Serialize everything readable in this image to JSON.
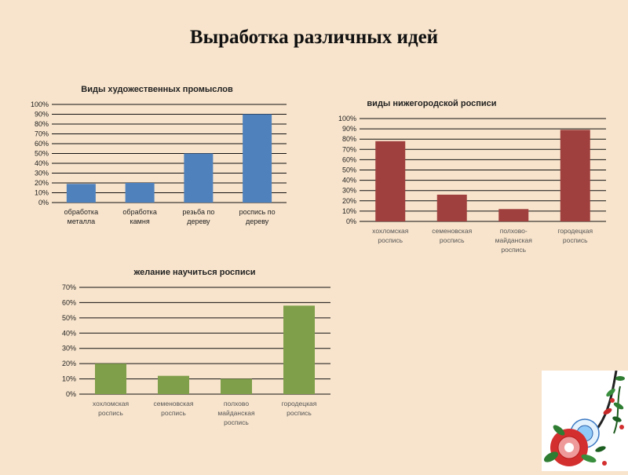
{
  "slide": {
    "title": "Выработка различных идей"
  },
  "colors": {
    "background": "#f8e4cc",
    "blue": "#4f81bd",
    "red": "#a0403e",
    "green": "#7f9f4a"
  },
  "ornament": {
    "icon": "khokhloma-flower-ornament-icon"
  },
  "chart_data": [
    {
      "type": "bar",
      "title": "Виды художественных промыслов",
      "categories": [
        [
          "обработка",
          "металла"
        ],
        [
          "обработка",
          "камня"
        ],
        [
          "резьба по",
          "дереву"
        ],
        [
          "роспись по",
          "дереву"
        ]
      ],
      "values": [
        0.19,
        0.2,
        0.5,
        0.9
      ],
      "yticks": [
        "0%",
        "10%",
        "20%",
        "30%",
        "40%",
        "50%",
        "60%",
        "70%",
        "80%",
        "90%",
        "100%"
      ],
      "ylim": [
        0,
        1.0
      ],
      "color": "#4f81bd",
      "grid": true
    },
    {
      "type": "bar",
      "title": "виды нижегородской росписи",
      "categories": [
        [
          "хохломская",
          "роспись"
        ],
        [
          "семеновская",
          "роспись"
        ],
        [
          "полхово-",
          "майданская",
          "роспись"
        ],
        [
          "городецкая",
          "роспись"
        ]
      ],
      "values": [
        0.78,
        0.26,
        0.12,
        0.89
      ],
      "yticks": [
        "0%",
        "10%",
        "20%",
        "30%",
        "40%",
        "50%",
        "60%",
        "70%",
        "80%",
        "90%",
        "100%"
      ],
      "ylim": [
        0,
        1.0
      ],
      "color": "#a0403e",
      "grid": true
    },
    {
      "type": "bar",
      "title": "желание научиться росписи",
      "categories": [
        [
          "хохломская",
          "роспись"
        ],
        [
          "семеновская",
          "роспись"
        ],
        [
          "полхово",
          "майданская",
          "роспись"
        ],
        [
          "городецкая",
          "роспись"
        ]
      ],
      "values": [
        0.2,
        0.12,
        0.1,
        0.58
      ],
      "yticks": [
        "0%",
        "10%",
        "20%",
        "30%",
        "40%",
        "50%",
        "60%",
        "70%"
      ],
      "ylim": [
        0,
        0.7
      ],
      "color": "#7f9f4a",
      "grid": true
    }
  ]
}
